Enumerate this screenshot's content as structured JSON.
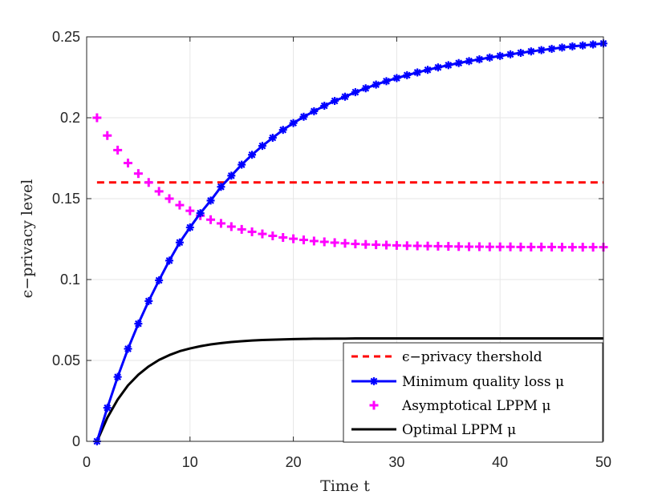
{
  "chart_data": {
    "type": "line",
    "title": "",
    "xlabel": "Time t",
    "ylabel": "ϵ−privacy level",
    "xlim": [
      0,
      50
    ],
    "ylim": [
      0,
      0.25
    ],
    "xticks": [
      0,
      10,
      20,
      30,
      40,
      50
    ],
    "xtick_labels": [
      "0",
      "10",
      "20",
      "30",
      "40",
      "50"
    ],
    "yticks": [
      0,
      0.05,
      0.1,
      0.15,
      0.2,
      0.25
    ],
    "ytick_labels": [
      "0",
      "0.05",
      "0.1",
      "0.15",
      "0.2",
      "0.25"
    ],
    "grid": true,
    "legend_position": "bottom-right",
    "x": [
      1,
      2,
      3,
      4,
      5,
      6,
      7,
      8,
      9,
      10,
      11,
      12,
      13,
      14,
      15,
      16,
      17,
      18,
      19,
      20,
      21,
      22,
      23,
      24,
      25,
      26,
      27,
      28,
      29,
      30,
      31,
      32,
      33,
      34,
      35,
      36,
      37,
      38,
      39,
      40,
      41,
      42,
      43,
      44,
      45,
      46,
      47,
      48,
      49,
      50
    ],
    "series": [
      {
        "name": "ϵ−privacy thershold",
        "legend_label": "ϵ−privacy thershold",
        "style": "dashed",
        "marker": "none",
        "color": "#ff0000",
        "values": [
          0.16,
          0.16,
          0.16,
          0.16,
          0.16,
          0.16,
          0.16,
          0.16,
          0.16,
          0.16,
          0.16,
          0.16,
          0.16,
          0.16,
          0.16,
          0.16,
          0.16,
          0.16,
          0.16,
          0.16,
          0.16,
          0.16,
          0.16,
          0.16,
          0.16,
          0.16,
          0.16,
          0.16,
          0.16,
          0.16,
          0.16,
          0.16,
          0.16,
          0.16,
          0.16,
          0.16,
          0.16,
          0.16,
          0.16,
          0.16,
          0.16,
          0.16,
          0.16,
          0.16,
          0.16,
          0.16,
          0.16,
          0.16,
          0.16,
          0.16
        ]
      },
      {
        "name": "Minimum quality loss μ",
        "legend_label": "Minimum quality loss μ",
        "style": "solid",
        "marker": "asterisk",
        "color": "#0000ff",
        "values": [
          0.0,
          0.0207,
          0.0398,
          0.0572,
          0.0727,
          0.0867,
          0.0995,
          0.1117,
          0.1229,
          0.1322,
          0.141,
          0.1488,
          0.1573,
          0.1642,
          0.171,
          0.1771,
          0.1826,
          0.1876,
          0.1925,
          0.1967,
          0.2006,
          0.204,
          0.2074,
          0.2104,
          0.213,
          0.2158,
          0.2182,
          0.2205,
          0.2226,
          0.2245,
          0.2263,
          0.228,
          0.2296,
          0.2311,
          0.2325,
          0.2338,
          0.235,
          0.2361,
          0.2372,
          0.2382,
          0.2392,
          0.2401,
          0.241,
          0.2418,
          0.2426,
          0.2434,
          0.2441,
          0.2447,
          0.2453,
          0.2459
        ]
      },
      {
        "name": "Asymptotical LPPM μ",
        "legend_label": "Asymptotical LPPM μ",
        "style": "none",
        "marker": "plus",
        "color": "#ff00ff",
        "values": [
          0.2,
          0.189,
          0.18,
          0.172,
          0.1655,
          0.16,
          0.1545,
          0.15,
          0.146,
          0.1425,
          0.1395,
          0.137,
          0.1347,
          0.1327,
          0.131,
          0.1295,
          0.1282,
          0.127,
          0.126,
          0.1252,
          0.1245,
          0.1238,
          0.1233,
          0.1228,
          0.1224,
          0.122,
          0.1217,
          0.1215,
          0.1213,
          0.1211,
          0.1209,
          0.1208,
          0.1207,
          0.1206,
          0.1205,
          0.1204,
          0.1203,
          0.1203,
          0.1202,
          0.1202,
          0.1202,
          0.1201,
          0.1201,
          0.1201,
          0.1201,
          0.12,
          0.12,
          0.12,
          0.12,
          0.12
        ]
      },
      {
        "name": "Optimal LPPM μ",
        "legend_label": "Optimal LPPM μ",
        "style": "solid",
        "marker": "none",
        "color": "#000000",
        "values": [
          0.0,
          0.0146,
          0.0258,
          0.0346,
          0.0412,
          0.0463,
          0.0503,
          0.0533,
          0.0557,
          0.0574,
          0.0588,
          0.0599,
          0.0607,
          0.0614,
          0.0619,
          0.0623,
          0.0626,
          0.0628,
          0.063,
          0.0632,
          0.0633,
          0.0634,
          0.0634,
          0.0635,
          0.0635,
          0.0636,
          0.0636,
          0.0636,
          0.0636,
          0.0636,
          0.0636,
          0.0636,
          0.0636,
          0.0636,
          0.0636,
          0.0636,
          0.0636,
          0.0636,
          0.0636,
          0.0636,
          0.0636,
          0.0636,
          0.0636,
          0.0636,
          0.0636,
          0.0636,
          0.0636,
          0.0636,
          0.0636,
          0.0636
        ]
      }
    ]
  }
}
